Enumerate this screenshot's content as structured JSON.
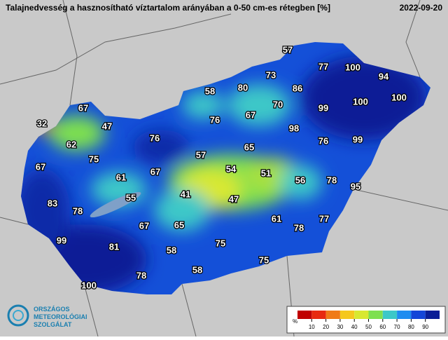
{
  "header": {
    "title": "Talajnedvesség a hasznosítható víztartalom arányában a 0-50 cm-es rétegben [%]",
    "date": "2022-09-20"
  },
  "map": {
    "labels": [
      57,
      77,
      100,
      94,
      73,
      80,
      58,
      86,
      100,
      100,
      67,
      70,
      99,
      67,
      32,
      47,
      76,
      98,
      62,
      76,
      76,
      99,
      65,
      75,
      57,
      67,
      54,
      51,
      61,
      67,
      56,
      78,
      95,
      41,
      55,
      47,
      83,
      78,
      61,
      77,
      78,
      67,
      65,
      99,
      81,
      75,
      58,
      75,
      58,
      78,
      100
    ]
  },
  "legend": {
    "unit": "%",
    "ticks": [
      10,
      20,
      30,
      40,
      50,
      60,
      70,
      80,
      90
    ],
    "colors": [
      "#c00000",
      "#e82a10",
      "#f07a18",
      "#f5c81e",
      "#d8e830",
      "#7ee050",
      "#3cc8c8",
      "#1e8cf0",
      "#1446d8",
      "#0a1e96"
    ]
  },
  "logo": {
    "lines": [
      "ORSZÁGOS",
      "METEOROLÓGIAI",
      "SZOLGÁLAT"
    ]
  }
}
